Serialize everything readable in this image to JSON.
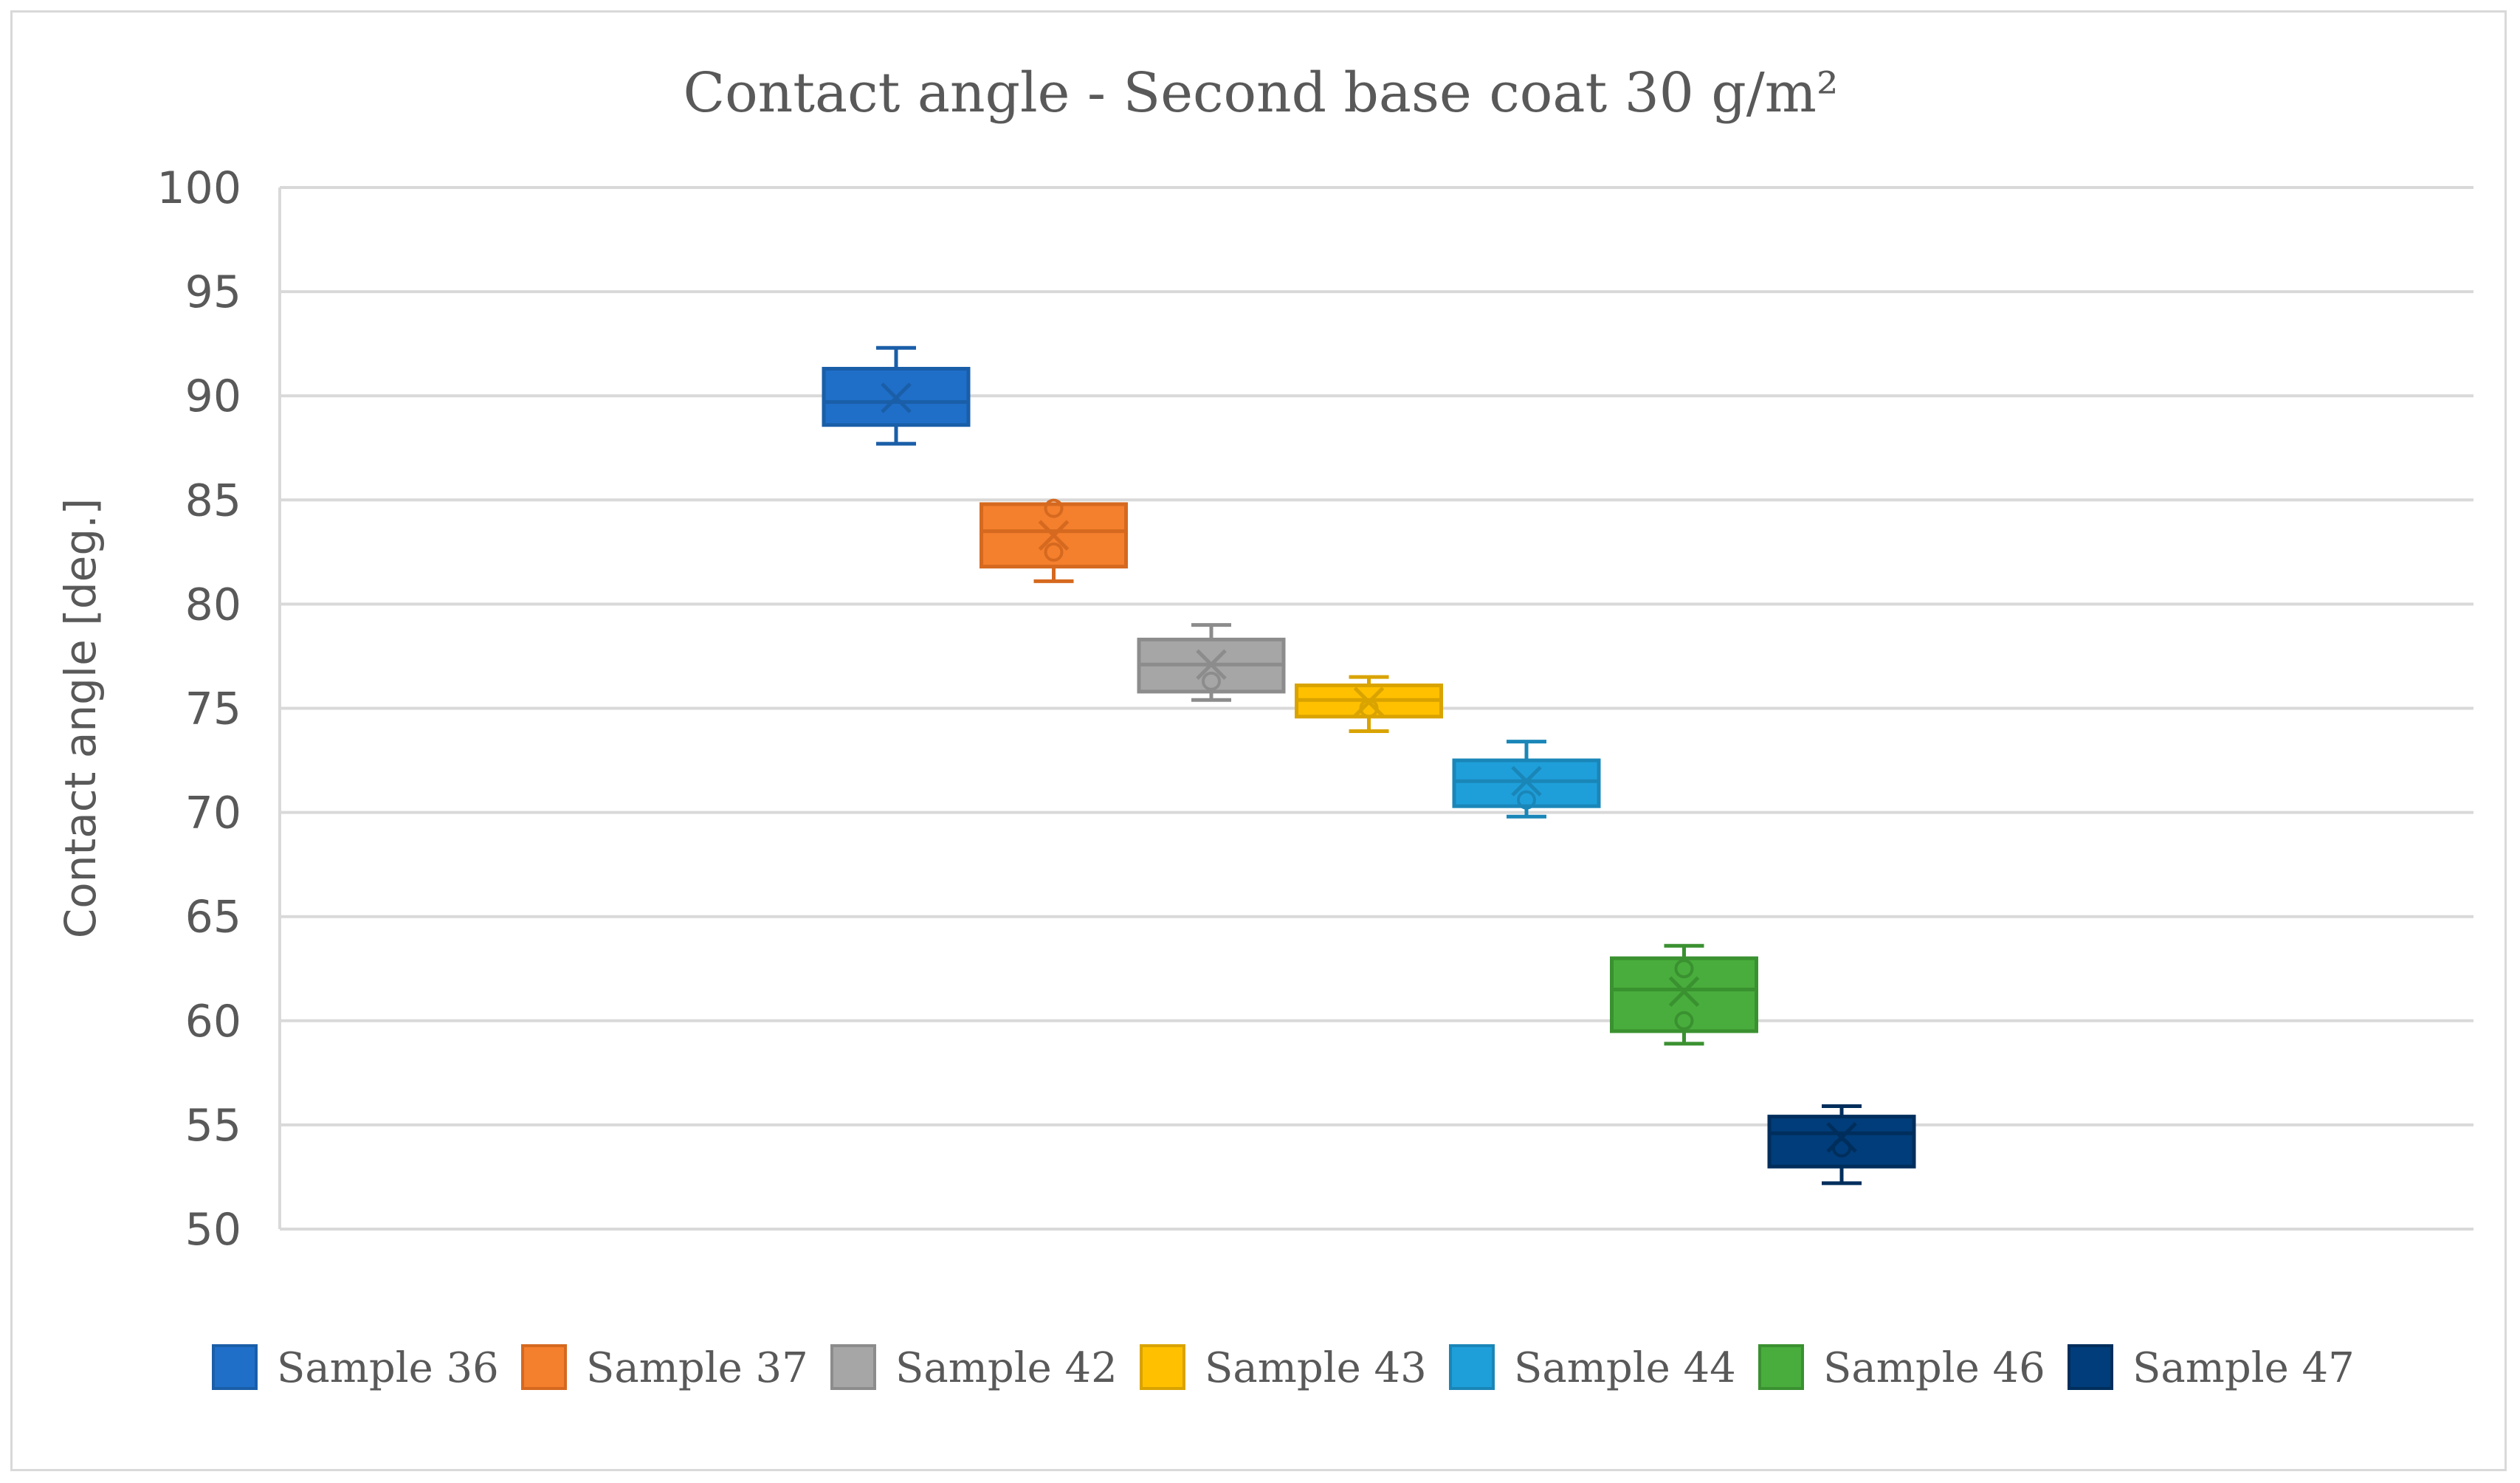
{
  "chart_data": {
    "type": "box",
    "title": "Contact angle - Second base coat 30 g/m²",
    "xlabel": "",
    "ylabel": "Contact angle [deg.]",
    "ylim": [
      50,
      100
    ],
    "yticks": [
      50,
      55,
      60,
      65,
      70,
      75,
      80,
      85,
      90,
      95,
      100
    ],
    "grid": true,
    "legend_position": "bottom",
    "series": [
      {
        "name": "Sample 36",
        "color": "#1f6fc9",
        "stroke": "#1a5ea8",
        "min": 87.7,
        "q1": 88.6,
        "median": 89.7,
        "q3": 91.3,
        "max": 92.3,
        "mean": 89.9,
        "points": []
      },
      {
        "name": "Sample 37",
        "color": "#f47f2d",
        "stroke": "#d5691f",
        "min": 81.1,
        "q1": 81.8,
        "median": 83.5,
        "q3": 84.8,
        "max": 84.8,
        "mean": 83.3,
        "points": [
          84.6,
          82.5
        ]
      },
      {
        "name": "Sample 42",
        "color": "#a6a6a6",
        "stroke": "#8c8c8c",
        "min": 75.4,
        "q1": 75.8,
        "median": 77.1,
        "q3": 78.3,
        "max": 79.0,
        "mean": 77.1,
        "points": [
          76.3
        ]
      },
      {
        "name": "Sample 43",
        "color": "#ffc000",
        "stroke": "#d9a300",
        "min": 73.9,
        "q1": 74.6,
        "median": 75.4,
        "q3": 76.1,
        "max": 76.5,
        "mean": 75.3,
        "points": [
          75.0
        ]
      },
      {
        "name": "Sample 44",
        "color": "#1f9fda",
        "stroke": "#1a86b8",
        "min": 69.8,
        "q1": 70.3,
        "median": 71.5,
        "q3": 72.5,
        "max": 73.4,
        "mean": 71.5,
        "points": [
          70.6
        ]
      },
      {
        "name": "Sample 46",
        "color": "#48ad3c",
        "stroke": "#3a9130",
        "min": 58.9,
        "q1": 59.5,
        "median": 61.5,
        "q3": 63.0,
        "max": 63.6,
        "mean": 61.4,
        "points": [
          62.5,
          60.0
        ]
      },
      {
        "name": "Sample 47",
        "color": "#003d7a",
        "stroke": "#002e5c",
        "min": 52.2,
        "q1": 53.0,
        "median": 54.6,
        "q3": 55.4,
        "max": 55.9,
        "mean": 54.4,
        "points": [
          53.9
        ]
      }
    ]
  }
}
